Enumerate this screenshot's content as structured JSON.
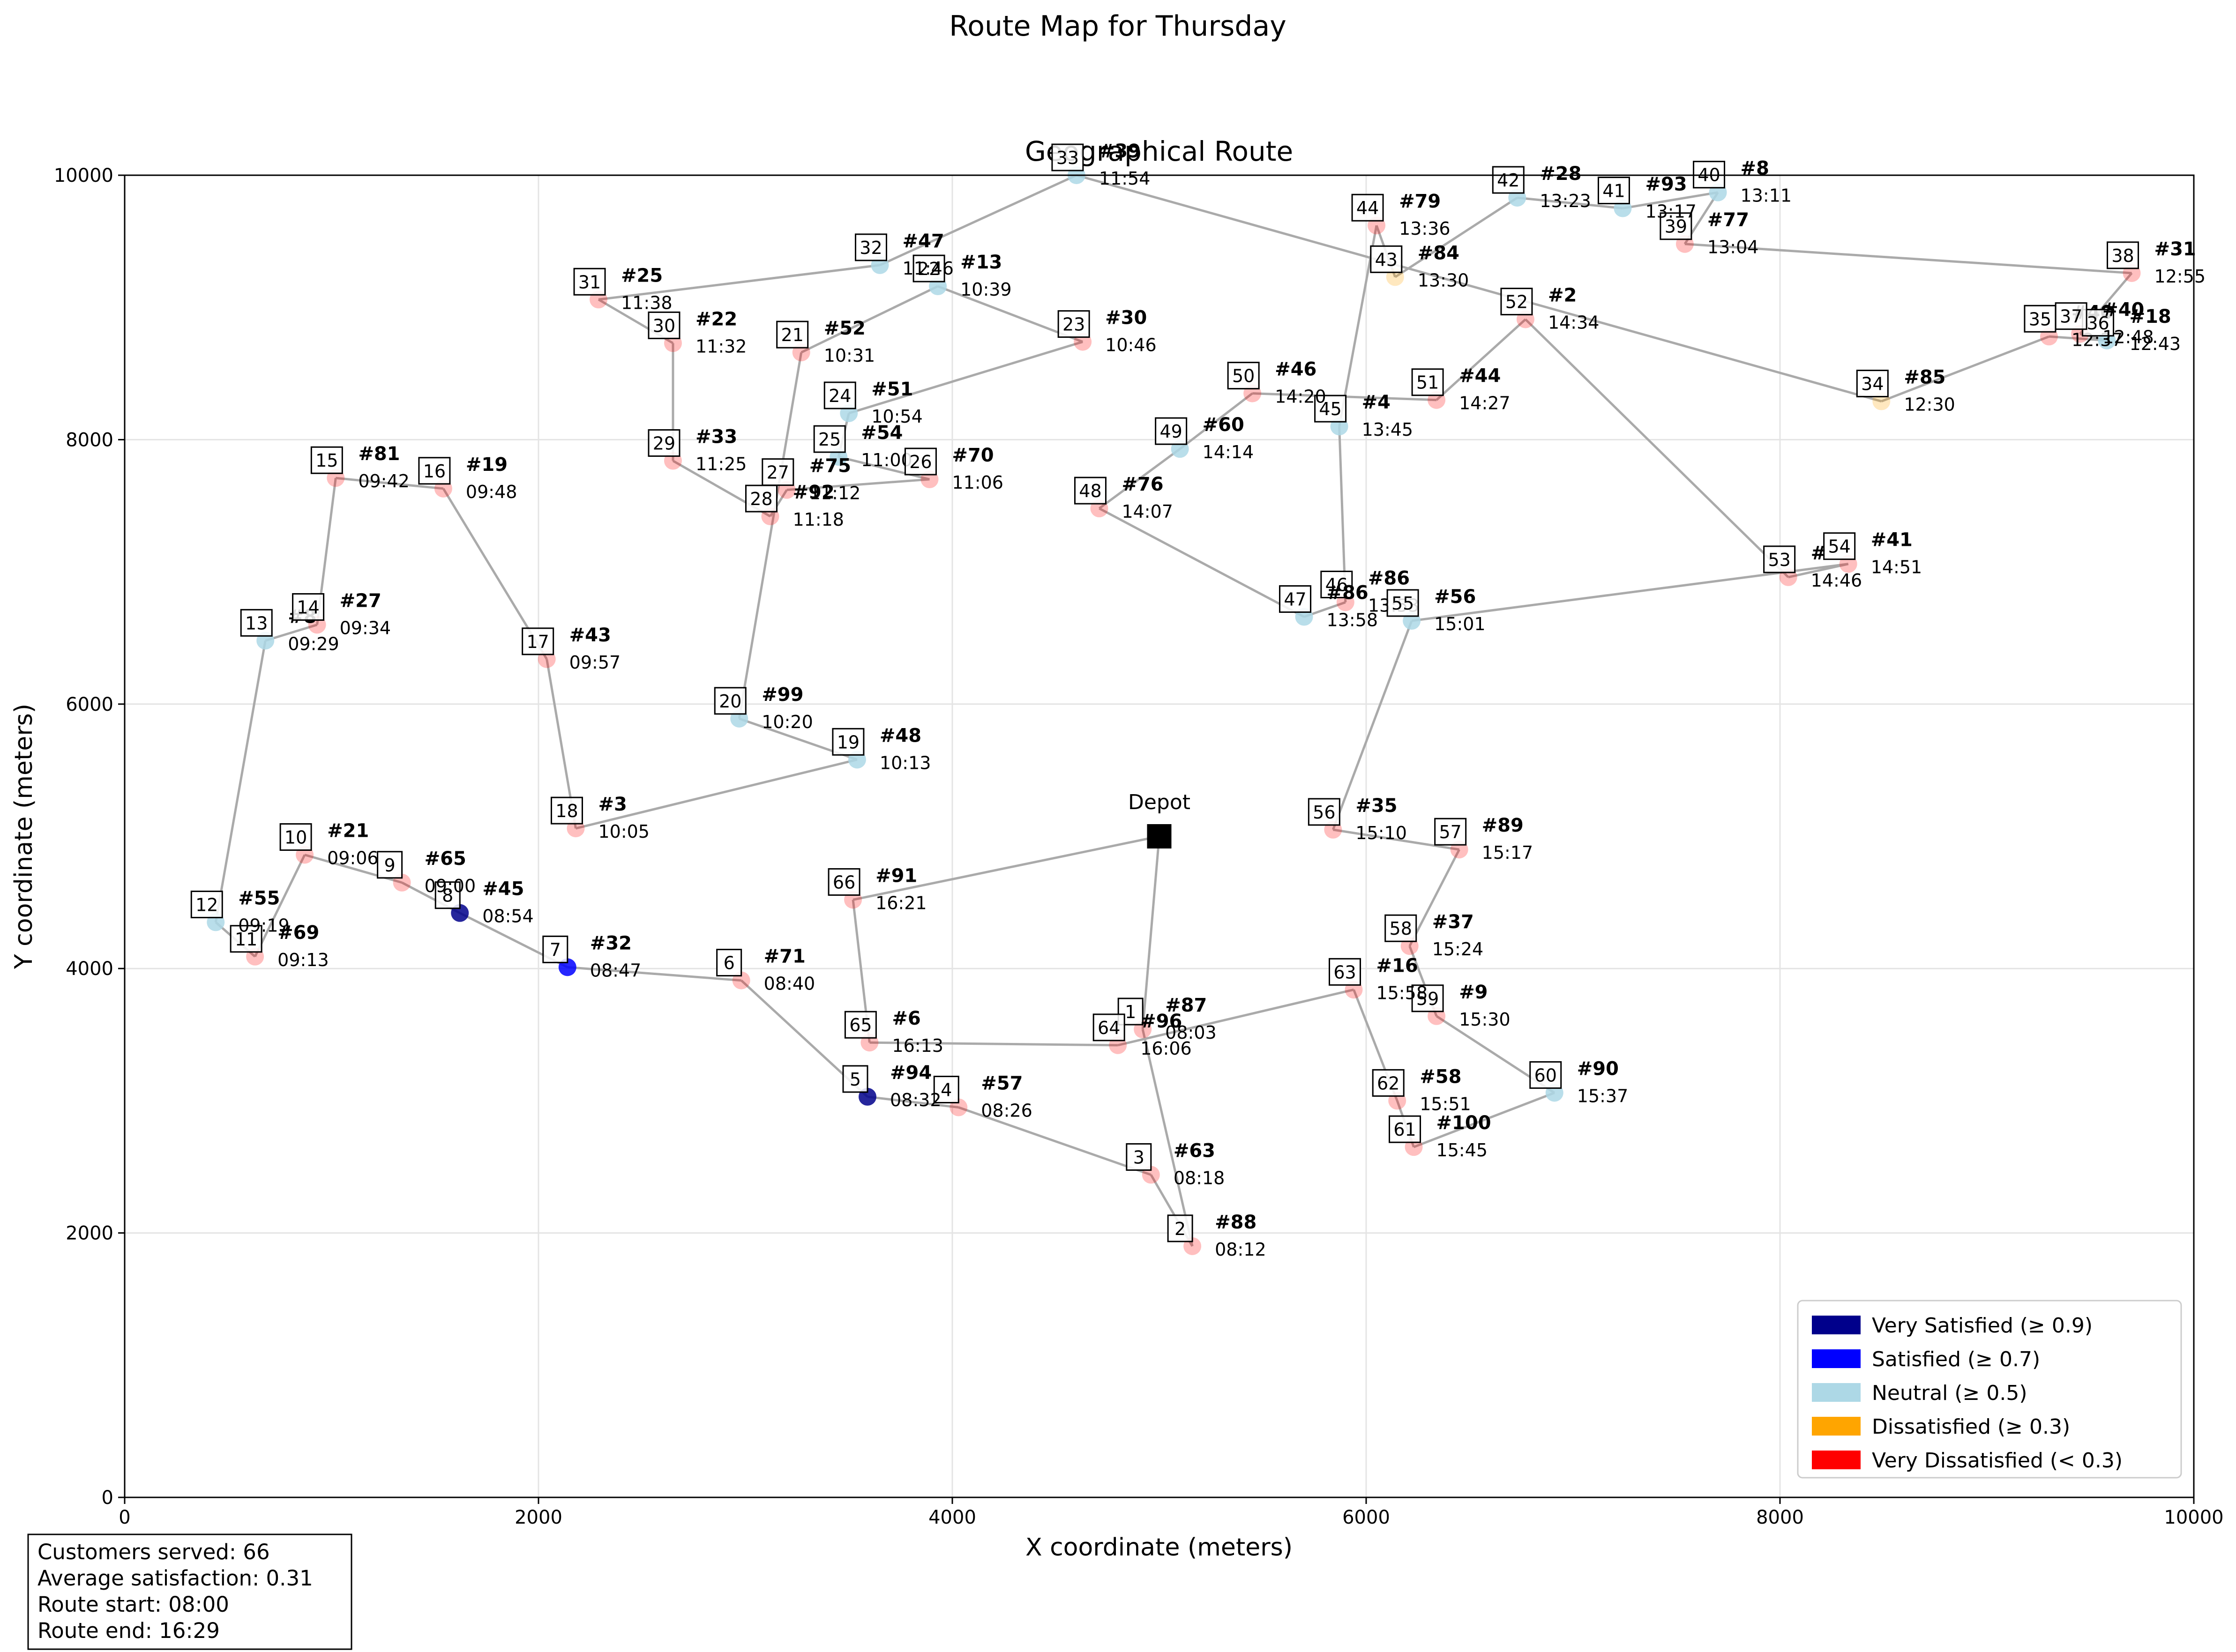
{
  "figure_title": "Route Map for Thursday",
  "summary_lines": [
    "Customers served: 66",
    "Average satisfaction: 0.31",
    "Route start: 08:00",
    "Route end: 16:29"
  ],
  "depot_label": "Depot",
  "colors": {
    "very_satisfied": "#00008b",
    "satisfied": "#0000ff",
    "neutral": "#add8e6",
    "dissatisfied": "#ffa500",
    "very_dissatisfied": "#ff0000",
    "route_line": "#aaaaaa",
    "depot": "#000000"
  },
  "chart_data": {
    "type": "scatter",
    "title": "Geographical Route",
    "xlabel": "X coordinate (meters)",
    "ylabel": "Y coordinate (meters)",
    "xlim": [
      0,
      10000
    ],
    "ylim": [
      0,
      10000
    ],
    "xticks": [
      0,
      2000,
      4000,
      6000,
      8000,
      10000
    ],
    "yticks": [
      0,
      2000,
      4000,
      6000,
      8000,
      10000
    ],
    "grid": true,
    "legend_position": "lower-right",
    "legend": [
      {
        "label": "Very Satisfied (≥ 0.9)",
        "color": "#00008b"
      },
      {
        "label": "Satisfied (≥ 0.7)",
        "color": "#0000ff"
      },
      {
        "label": "Neutral (≥ 0.5)",
        "color": "#add8e6"
      },
      {
        "label": "Dissatisfied (≥ 0.3)",
        "color": "#ffa500"
      },
      {
        "label": "Very Dissatisfied (< 0.3)",
        "color": "#ff0000"
      }
    ],
    "depot": {
      "x": 5000,
      "y": 5000
    },
    "stops": [
      {
        "order": 1,
        "customer": "#87",
        "time": "08:03",
        "x": 4920,
        "y": 3540,
        "sat": "very_dissatisfied"
      },
      {
        "order": 2,
        "customer": "#88",
        "time": "08:12",
        "x": 5160,
        "y": 1900,
        "sat": "very_dissatisfied"
      },
      {
        "order": 3,
        "customer": "#63",
        "time": "08:18",
        "x": 4960,
        "y": 2440,
        "sat": "very_dissatisfied"
      },
      {
        "order": 4,
        "customer": "#57",
        "time": "08:26",
        "x": 4030,
        "y": 2950,
        "sat": "very_dissatisfied"
      },
      {
        "order": 5,
        "customer": "#94",
        "time": "08:32",
        "x": 3590,
        "y": 3030,
        "sat": "very_satisfied"
      },
      {
        "order": 6,
        "customer": "#71",
        "time": "08:40",
        "x": 2980,
        "y": 3910,
        "sat": "very_dissatisfied"
      },
      {
        "order": 7,
        "customer": "#32",
        "time": "08:47",
        "x": 2140,
        "y": 4010,
        "sat": "satisfied"
      },
      {
        "order": 8,
        "customer": "#45",
        "time": "08:54",
        "x": 1620,
        "y": 4420,
        "sat": "very_satisfied"
      },
      {
        "order": 9,
        "customer": "#65",
        "time": "09:00",
        "x": 1340,
        "y": 4650,
        "sat": "very_dissatisfied"
      },
      {
        "order": 10,
        "customer": "#21",
        "time": "09:06",
        "x": 870,
        "y": 4860,
        "sat": "very_dissatisfied"
      },
      {
        "order": 11,
        "customer": "#69",
        "time": "09:13",
        "x": 630,
        "y": 4090,
        "sat": "very_dissatisfied"
      },
      {
        "order": 12,
        "customer": "#55",
        "time": "09:19",
        "x": 440,
        "y": 4350,
        "sat": "neutral"
      },
      {
        "order": 13,
        "customer": "#8",
        "time": "09:29",
        "x": 680,
        "y": 6480,
        "sat": "neutral"
      },
      {
        "order": 14,
        "customer": "#27",
        "time": "09:34",
        "x": 930,
        "y": 6600,
        "sat": "very_dissatisfied"
      },
      {
        "order": 15,
        "customer": "#81",
        "time": "09:42",
        "x": 1020,
        "y": 7710,
        "sat": "very_dissatisfied"
      },
      {
        "order": 16,
        "customer": "#19",
        "time": "09:48",
        "x": 1540,
        "y": 7630,
        "sat": "very_dissatisfied"
      },
      {
        "order": 17,
        "customer": "#43",
        "time": "09:57",
        "x": 2040,
        "y": 6340,
        "sat": "very_dissatisfied"
      },
      {
        "order": 18,
        "customer": "#3",
        "time": "10:05",
        "x": 2180,
        "y": 5060,
        "sat": "very_dissatisfied"
      },
      {
        "order": 19,
        "customer": "#48",
        "time": "10:13",
        "x": 3540,
        "y": 5580,
        "sat": "neutral"
      },
      {
        "order": 20,
        "customer": "#99",
        "time": "10:20",
        "x": 2970,
        "y": 5890,
        "sat": "neutral"
      },
      {
        "order": 21,
        "customer": "#52",
        "time": "10:31",
        "x": 3270,
        "y": 8660,
        "sat": "very_dissatisfied"
      },
      {
        "order": 22,
        "customer": "#13",
        "time": "10:39",
        "x": 3930,
        "y": 9160,
        "sat": "neutral"
      },
      {
        "order": 23,
        "customer": "#30",
        "time": "10:46",
        "x": 4630,
        "y": 8740,
        "sat": "very_dissatisfied"
      },
      {
        "order": 24,
        "customer": "#51",
        "time": "10:54",
        "x": 3500,
        "y": 8200,
        "sat": "neutral"
      },
      {
        "order": 25,
        "customer": "#54",
        "time": "11:00",
        "x": 3450,
        "y": 7870,
        "sat": "neutral"
      },
      {
        "order": 26,
        "customer": "#70",
        "time": "11:06",
        "x": 3890,
        "y": 7700,
        "sat": "very_dissatisfied"
      },
      {
        "order": 27,
        "customer": "#75",
        "time": "11:12",
        "x": 3200,
        "y": 7620,
        "sat": "very_dissatisfied"
      },
      {
        "order": 28,
        "customer": "#92",
        "time": "11:18",
        "x": 3120,
        "y": 7420,
        "sat": "very_dissatisfied"
      },
      {
        "order": 29,
        "customer": "#33",
        "time": "11:25",
        "x": 2650,
        "y": 7840,
        "sat": "very_dissatisfied"
      },
      {
        "order": 30,
        "customer": "#22",
        "time": "11:32",
        "x": 2650,
        "y": 8730,
        "sat": "very_dissatisfied"
      },
      {
        "order": 31,
        "customer": "#25",
        "time": "11:38",
        "x": 2290,
        "y": 9060,
        "sat": "very_dissatisfied"
      },
      {
        "order": 32,
        "customer": "#47",
        "time": "11:46",
        "x": 3650,
        "y": 9320,
        "sat": "neutral"
      },
      {
        "order": 33,
        "customer": "#39",
        "time": "11:54",
        "x": 4600,
        "y": 10000,
        "sat": "neutral"
      },
      {
        "order": 34,
        "customer": "#85",
        "time": "12:30",
        "x": 8490,
        "y": 8290,
        "sat": "dissatisfied"
      },
      {
        "order": 35,
        "customer": "#40",
        "time": "12:37",
        "x": 9300,
        "y": 8780,
        "sat": "very_dissatisfied"
      },
      {
        "order": 36,
        "customer": "#18",
        "time": "12:43",
        "x": 9580,
        "y": 8750,
        "sat": "neutral"
      },
      {
        "order": 37,
        "customer": "#40",
        "time": "12:48",
        "x": 9450,
        "y": 8800,
        "sat": "very_dissatisfied"
      },
      {
        "order": 38,
        "customer": "#31",
        "time": "12:55",
        "x": 9700,
        "y": 9260,
        "sat": "very_dissatisfied"
      },
      {
        "order": 39,
        "customer": "#77",
        "time": "13:04",
        "x": 7540,
        "y": 9480,
        "sat": "very_dissatisfied"
      },
      {
        "order": 40,
        "customer": "#8",
        "time": "13:11",
        "x": 7700,
        "y": 9870,
        "sat": "neutral"
      },
      {
        "order": 41,
        "customer": "#93",
        "time": "13:17",
        "x": 7240,
        "y": 9750,
        "sat": "neutral"
      },
      {
        "order": 42,
        "customer": "#28",
        "time": "13:23",
        "x": 6730,
        "y": 9830,
        "sat": "neutral"
      },
      {
        "order": 43,
        "customer": "#84",
        "time": "13:30",
        "x": 6140,
        "y": 9230,
        "sat": "dissatisfied"
      },
      {
        "order": 44,
        "customer": "#79",
        "time": "13:36",
        "x": 6050,
        "y": 9620,
        "sat": "very_dissatisfied"
      },
      {
        "order": 45,
        "customer": "#4",
        "time": "13:45",
        "x": 5870,
        "y": 8100,
        "sat": "neutral"
      },
      {
        "order": 46,
        "customer": "#86",
        "time": "13:53",
        "x": 5900,
        "y": 6770,
        "sat": "very_dissatisfied"
      },
      {
        "order": 47,
        "customer": "#86",
        "time": "13:58",
        "x": 5700,
        "y": 6660,
        "sat": "neutral"
      },
      {
        "order": 48,
        "customer": "#76",
        "time": "14:07",
        "x": 4710,
        "y": 7480,
        "sat": "very_dissatisfied"
      },
      {
        "order": 49,
        "customer": "#60",
        "time": "14:14",
        "x": 5100,
        "y": 7930,
        "sat": "neutral"
      },
      {
        "order": 50,
        "customer": "#46",
        "time": "14:20",
        "x": 5450,
        "y": 8350,
        "sat": "very_dissatisfied"
      },
      {
        "order": 51,
        "customer": "#44",
        "time": "14:27",
        "x": 6340,
        "y": 8300,
        "sat": "very_dissatisfied"
      },
      {
        "order": 52,
        "customer": "#2",
        "time": "14:34",
        "x": 6770,
        "y": 8910,
        "sat": "very_dissatisfied"
      },
      {
        "order": 53,
        "customer": "#",
        "time": "14:46",
        "x": 8040,
        "y": 6960,
        "sat": "very_dissatisfied"
      },
      {
        "order": 54,
        "customer": "#41",
        "time": "14:51",
        "x": 8330,
        "y": 7060,
        "sat": "very_dissatisfied"
      },
      {
        "order": 55,
        "customer": "#56",
        "time": "15:01",
        "x": 6220,
        "y": 6630,
        "sat": "neutral"
      },
      {
        "order": 56,
        "customer": "#35",
        "time": "15:10",
        "x": 5840,
        "y": 5050,
        "sat": "very_dissatisfied"
      },
      {
        "order": 57,
        "customer": "#89",
        "time": "15:17",
        "x": 6450,
        "y": 4900,
        "sat": "very_dissatisfied"
      },
      {
        "order": 58,
        "customer": "#37",
        "time": "15:24",
        "x": 6210,
        "y": 4170,
        "sat": "very_dissatisfied"
      },
      {
        "order": 59,
        "customer": "#9",
        "time": "15:30",
        "x": 6340,
        "y": 3640,
        "sat": "very_dissatisfied"
      },
      {
        "order": 60,
        "customer": "#90",
        "time": "15:37",
        "x": 6910,
        "y": 3060,
        "sat": "neutral"
      },
      {
        "order": 61,
        "customer": "#100",
        "time": "15:45",
        "x": 6230,
        "y": 2650,
        "sat": "very_dissatisfied"
      },
      {
        "order": 62,
        "customer": "#58",
        "time": "15:51",
        "x": 6150,
        "y": 3000,
        "sat": "very_dissatisfied"
      },
      {
        "order": 63,
        "customer": "#16",
        "time": "15:58",
        "x": 5940,
        "y": 3840,
        "sat": "very_dissatisfied"
      },
      {
        "order": 64,
        "customer": "#96",
        "time": "16:06",
        "x": 4800,
        "y": 3420,
        "sat": "very_dissatisfied"
      },
      {
        "order": 65,
        "customer": "#6",
        "time": "16:13",
        "x": 3600,
        "y": 3440,
        "sat": "very_dissatisfied"
      },
      {
        "order": 66,
        "customer": "#91",
        "time": "16:21",
        "x": 3520,
        "y": 4520,
        "sat": "very_dissatisfied"
      }
    ]
  }
}
